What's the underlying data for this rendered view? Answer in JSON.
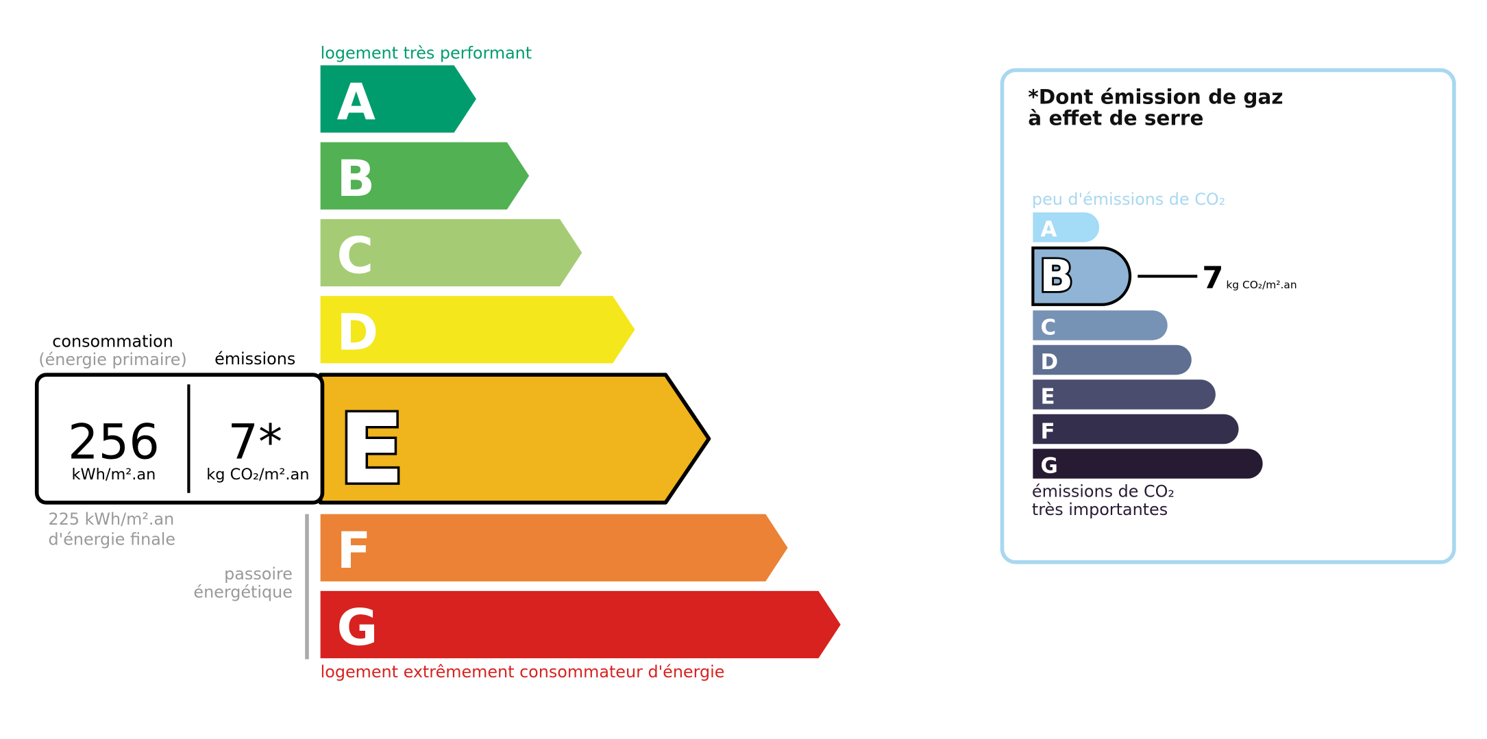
{
  "energy_label": {
    "top_note": "logement très performant",
    "bottom_note": "logement extrêmement consommateur d'énergie",
    "classes": [
      "A",
      "B",
      "C",
      "D",
      "E",
      "F",
      "G"
    ],
    "rating": "E",
    "consumption_heading": "consommation",
    "consumption_sub": "(énergie primaire)",
    "emissions_heading": "émissions",
    "consumption_value": "256",
    "consumption_unit": "kWh/m².an",
    "emissions_value": "7*",
    "emissions_unit": "kg CO₂/m².an",
    "final_energy": [
      "225 kWh/m².an",
      "d'énergie finale"
    ],
    "passoire": [
      "passoire",
      "énergétique"
    ]
  },
  "ghg_panel": {
    "title": [
      "*Dont émission de gaz",
      "à effet de serre"
    ],
    "top_note": "peu d'émissions de CO₂",
    "bottom_note": [
      "émissions de CO₂",
      "très importantes"
    ],
    "classes": [
      "A",
      "B",
      "C",
      "D",
      "E",
      "F",
      "G"
    ],
    "rating": "B",
    "value": "7",
    "unit": "kg CO₂/m².an"
  }
}
